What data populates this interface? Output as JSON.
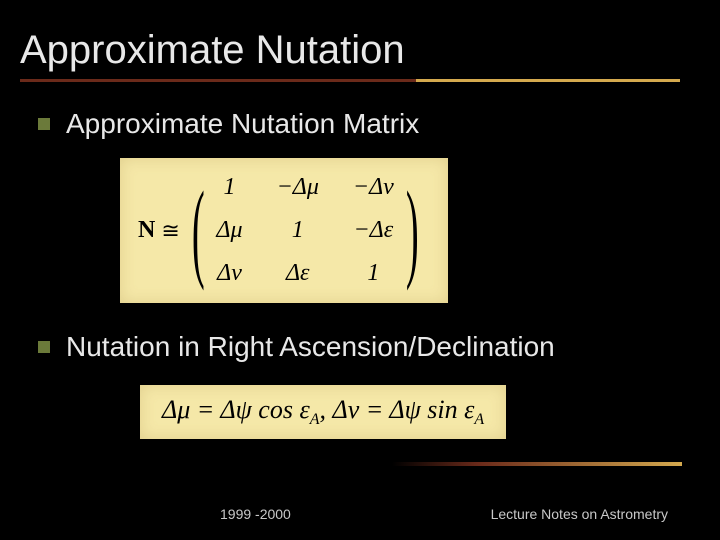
{
  "slide": {
    "title": "Approximate Nutation",
    "bullets": [
      {
        "text": "Approximate Nutation Matrix"
      },
      {
        "text": "Nutation in Right Ascension/Declination"
      }
    ],
    "matrix_formula": {
      "lhs_symbol": "N",
      "relation": "≅",
      "cells": [
        [
          "1",
          "−Δμ",
          "−Δν"
        ],
        [
          "Δμ",
          "1",
          "−Δε"
        ],
        [
          "Δν",
          "Δε",
          "1"
        ]
      ],
      "box_bg": "#f5e8a8",
      "text_color": "#000000",
      "font_family": "Times New Roman",
      "fontsize": 24
    },
    "equation_formula": {
      "text_parts": {
        "p1": "Δμ = Δψ cos ε",
        "sub1": "A",
        "sep": ", ",
        "p2": "Δν = Δψ sin ε",
        "sub2": "A"
      },
      "box_bg": "#f5e8a8",
      "fontsize": 26
    },
    "underline_colors": {
      "left": "#6b2a1a",
      "right": "#d4a94e"
    },
    "background_color": "#000000",
    "title_color": "#e8e8e8",
    "body_text_color": "#e8e8e8",
    "bullet_marker_color": "#6b7a3a",
    "title_fontsize": 40,
    "body_fontsize": 28
  },
  "footer": {
    "left": "1999 -2000",
    "right": "Lecture Notes on Astrometry",
    "fontsize": 14,
    "color": "#c8c8c8"
  }
}
